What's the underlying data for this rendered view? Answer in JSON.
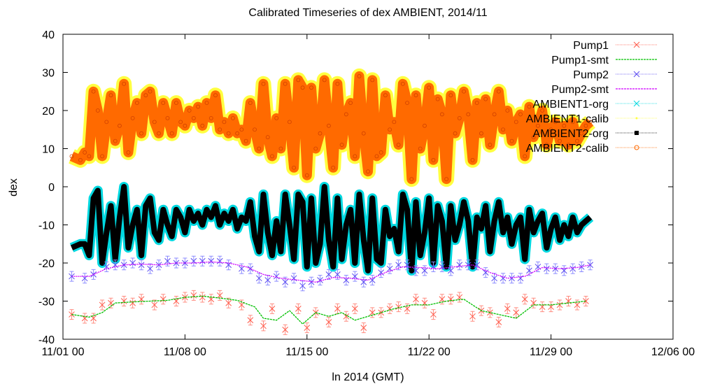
{
  "chart_data": {
    "type": "line",
    "title": "Calibrated Timeseries of dex AMBIENT, 2014/11",
    "xlabel": "ln 2014 (GMT)",
    "ylabel": "dex",
    "xlim": [
      "2014-11-01 00:00",
      "2014-12-06 00:00"
    ],
    "ylim": [
      -40,
      40
    ],
    "x_ticks": [
      "11/01 00",
      "11/08 00",
      "11/15 00",
      "11/22 00",
      "11/29 00",
      "12/06 00"
    ],
    "y_ticks": [
      -40,
      -30,
      -20,
      -10,
      0,
      10,
      20,
      30,
      40
    ],
    "grid": false,
    "legend_position": "top-right",
    "colors": {
      "Pump1": "#ff5a4a",
      "Pump1-smt": "#00c000",
      "Pump2": "#5a4af0",
      "Pump2-smt": "#d000ff",
      "AMBIENT1-org": "#00d8e0",
      "AMBIENT1-calib": "#ffff40",
      "AMBIENT2-org": "#000000",
      "AMBIENT2-calib": "#ff6a00"
    },
    "series": [
      {
        "name": "Pump1",
        "marker": "x",
        "x": [
          "11/01 12",
          "11/02 06",
          "11/02 18",
          "11/03 06",
          "11/03 18",
          "11/04 12",
          "11/05 00",
          "11/05 12",
          "11/06 06",
          "11/06 18",
          "11/07 12",
          "11/08 00",
          "11/08 12",
          "11/09 00",
          "11/09 12",
          "11/10 00",
          "11/10 12",
          "11/11 06",
          "11/11 18",
          "11/12 12",
          "11/13 00",
          "11/13 18",
          "11/14 12",
          "11/15 00",
          "11/15 12",
          "11/16 06",
          "11/16 18",
          "11/17 06",
          "11/17 18",
          "11/18 06",
          "11/18 18",
          "11/19 06",
          "11/19 18",
          "11/20 06",
          "11/20 18",
          "11/21 06",
          "11/21 18",
          "11/22 06",
          "11/22 18",
          "11/23 06",
          "11/23 18",
          "11/24 12",
          "11/25 00",
          "11/25 12",
          "11/26 00",
          "11/26 12",
          "11/27 00",
          "11/27 12",
          "11/28 00",
          "11/28 12",
          "11/29 00",
          "11/29 12",
          "11/30 00",
          "11/30 12",
          "12/01 00"
        ],
        "values": [
          -33.5,
          -34.5,
          -34.5,
          -31,
          -30.5,
          -30,
          -30.5,
          -29.5,
          -31,
          -29.5,
          -30,
          -29,
          -28.5,
          -29,
          -29.5,
          -28.5,
          -30.5,
          -31,
          -35,
          -36.5,
          -32,
          -37.5,
          -32,
          -37,
          -33,
          -35.5,
          -32,
          -34,
          -32,
          -37,
          -33,
          -33,
          -32,
          -31.5,
          -32,
          -29.5,
          -30.5,
          -33.5,
          -29.5,
          -29.5,
          -29,
          -34,
          -32.5,
          -33,
          -35.5,
          -32,
          -33,
          -29.5,
          -30.5,
          -31.5,
          -31.5,
          -31,
          -30,
          -31,
          -30
        ]
      },
      {
        "name": "Pump1-smt",
        "x": [
          "11/01 12",
          "11/02 12",
          "11/03 06",
          "11/04 00",
          "11/05 00",
          "11/06 00",
          "11/07 00",
          "11/08 00",
          "11/09 00",
          "11/10 00",
          "11/11 00",
          "11/12 00",
          "11/12 12",
          "11/13 06",
          "11/14 00",
          "11/14 18",
          "11/15 12",
          "11/16 06",
          "11/17 00",
          "11/17 18",
          "11/18 12",
          "11/19 06",
          "11/20 00",
          "11/21 00",
          "11/22 00",
          "11/23 00",
          "11/24 00",
          "11/25 00",
          "11/26 00",
          "11/27 00",
          "11/28 00",
          "11/29 00",
          "11/30 00",
          "12/01 00"
        ],
        "values": [
          -33.5,
          -34.2,
          -33,
          -30.5,
          -30.2,
          -30,
          -29.8,
          -29,
          -28.7,
          -29.2,
          -29.8,
          -31.5,
          -34.5,
          -35,
          -32.5,
          -36,
          -33,
          -34,
          -33,
          -35,
          -34,
          -33,
          -32,
          -31,
          -31,
          -30,
          -29.5,
          -32.5,
          -33.5,
          -34.5,
          -31,
          -31,
          -30.5,
          -30
        ]
      },
      {
        "name": "Pump2",
        "marker": "x",
        "x": [
          "11/01 12",
          "11/02 06",
          "11/02 18",
          "11/03 12",
          "11/04 00",
          "11/04 12",
          "11/05 00",
          "11/05 12",
          "11/06 00",
          "11/06 12",
          "11/07 00",
          "11/07 12",
          "11/08 00",
          "11/08 12",
          "11/09 00",
          "11/09 12",
          "11/10 00",
          "11/10 12",
          "11/11 06",
          "11/11 18",
          "11/12 06",
          "11/12 18",
          "11/13 06",
          "11/13 18",
          "11/14 06",
          "11/14 18",
          "11/15 06",
          "11/15 18",
          "11/16 06",
          "11/16 18",
          "11/17 06",
          "11/17 18",
          "11/18 06",
          "11/18 18",
          "11/19 06",
          "11/19 18",
          "11/20 06",
          "11/20 18",
          "11/21 06",
          "11/21 18",
          "11/22 06",
          "11/22 18",
          "11/23 06",
          "11/23 18",
          "11/24 06",
          "11/24 18",
          "11/25 06",
          "11/25 18",
          "11/26 06",
          "11/26 18",
          "11/27 06",
          "11/27 18",
          "11/28 06",
          "11/28 18",
          "11/29 06",
          "11/29 18",
          "11/30 06",
          "11/30 18",
          "12/01 06"
        ],
        "values": [
          -23.5,
          -24,
          -23,
          -21,
          -20.5,
          -20.5,
          -20,
          -20.5,
          -21.5,
          -20.5,
          -19.5,
          -20,
          -20,
          -19.5,
          -19.5,
          -19.5,
          -19.5,
          -20.5,
          -21.5,
          -21.5,
          -24,
          -24.5,
          -23.5,
          -25,
          -24,
          -26,
          -25,
          -24.5,
          -23,
          -23,
          -24.5,
          -23.5,
          -25,
          -24.5,
          -22.5,
          -21.5,
          -20.5,
          -20.5,
          -22,
          -22,
          -21,
          -21,
          -22,
          -20.5,
          -20.5,
          -20.5,
          -22.5,
          -24,
          -24,
          -24,
          -24,
          -22,
          -21,
          -21.5,
          -21.5,
          -22,
          -21.5,
          -21,
          -20.5
        ]
      },
      {
        "name": "Pump2-smt",
        "x": [
          "11/01 12",
          "11/02 12",
          "11/03 12",
          "11/04 12",
          "11/05 12",
          "11/06 12",
          "11/07 12",
          "11/08 12",
          "11/09 12",
          "11/10 12",
          "11/11 12",
          "11/12 12",
          "11/13 12",
          "11/14 12",
          "11/15 12",
          "11/16 12",
          "11/17 12",
          "11/18 12",
          "11/19 12",
          "11/20 12",
          "11/21 12",
          "11/22 12",
          "11/23 12",
          "11/24 12",
          "11/25 12",
          "11/26 12",
          "11/27 12",
          "11/28 12",
          "11/29 12",
          "11/30 12",
          "12/01 06"
        ],
        "values": [
          -23.5,
          -23.5,
          -21.5,
          -20.5,
          -20.3,
          -20.5,
          -20,
          -20,
          -19.7,
          -20,
          -21,
          -23,
          -24,
          -24.5,
          -25,
          -23.8,
          -24,
          -24.5,
          -22.5,
          -21,
          -21.2,
          -21.5,
          -21,
          -20.5,
          -22.5,
          -24,
          -23.5,
          -21.2,
          -21.5,
          -21.2,
          -20.5
        ]
      },
      {
        "name": "AMBIENT1-org",
        "marker": "x"
      },
      {
        "name": "AMBIENT1-calib",
        "marker": "dot"
      },
      {
        "name": "AMBIENT2-org",
        "marker": "square",
        "x": [
          "11/01 12",
          "11/02 00",
          "11/02 06",
          "11/02 12",
          "11/02 18",
          "11/03 00",
          "11/03 06",
          "11/03 12",
          "11/03 18",
          "11/04 00",
          "11/04 06",
          "11/04 12",
          "11/04 18",
          "11/05 00",
          "11/05 06",
          "11/05 12",
          "11/05 18",
          "11/06 00",
          "11/06 06",
          "11/06 12",
          "11/06 18",
          "11/07 00",
          "11/07 06",
          "11/07 12",
          "11/07 18",
          "11/08 00",
          "11/08 06",
          "11/08 12",
          "11/08 18",
          "11/09 00",
          "11/09 06",
          "11/09 12",
          "11/09 18",
          "11/10 00",
          "11/10 06",
          "11/10 12",
          "11/10 18",
          "11/11 00",
          "11/11 06",
          "11/11 12",
          "11/11 18",
          "11/12 00",
          "11/12 06",
          "11/12 12",
          "11/12 18",
          "11/13 00",
          "11/13 06",
          "11/13 12",
          "11/13 18",
          "11/14 00",
          "11/14 06",
          "11/14 12",
          "11/14 18",
          "11/15 00",
          "11/15 06",
          "11/15 12",
          "11/15 18",
          "11/16 00",
          "11/16 06",
          "11/16 12",
          "11/16 18",
          "11/17 00",
          "11/17 06",
          "11/17 12",
          "11/17 18",
          "11/18 00",
          "11/18 06",
          "11/18 12",
          "11/18 18",
          "11/19 00",
          "11/19 06",
          "11/19 12",
          "11/19 18",
          "11/20 00",
          "11/20 06",
          "11/20 12",
          "11/20 18",
          "11/21 00",
          "11/21 06",
          "11/21 12",
          "11/21 18",
          "11/22 00",
          "11/22 06",
          "11/22 12",
          "11/22 18",
          "11/23 00",
          "11/23 06",
          "11/23 12",
          "11/23 18",
          "11/24 00",
          "11/24 06",
          "11/24 12",
          "11/24 18",
          "11/25 00",
          "11/25 06",
          "11/25 12",
          "11/25 18",
          "11/26 00",
          "11/26 06",
          "11/26 12",
          "11/26 18",
          "11/27 00",
          "11/27 06",
          "11/27 12",
          "11/27 18",
          "11/28 00",
          "11/28 06",
          "11/28 12",
          "11/28 18",
          "11/29 00",
          "11/29 06",
          "11/29 12",
          "11/29 18",
          "11/30 00",
          "11/30 06",
          "11/30 12",
          "11/30 18",
          "12/01 00",
          "12/01 06"
        ],
        "values": [
          -16,
          -15,
          -15,
          -18,
          -3,
          -1,
          -20,
          -12,
          -5,
          -19,
          -8,
          0,
          -16,
          -10,
          -6,
          -18,
          -5,
          -3,
          -12,
          -14,
          -6,
          -10,
          -13,
          -6,
          -8,
          -12,
          -6,
          -9,
          -7,
          -10,
          -6,
          -8,
          -5,
          -10,
          -7,
          -9,
          -6,
          -11,
          -8,
          -9,
          -4,
          -13,
          -17,
          -2,
          -12,
          -18,
          -9,
          -17,
          -2,
          -10,
          -19,
          -2,
          -4,
          -21,
          -3,
          -20,
          -15,
          0,
          -14,
          -21,
          -3,
          -19,
          -10,
          -6,
          -20,
          -2,
          -14,
          -22,
          -3,
          -19,
          -20,
          -6,
          -13,
          -11,
          -17,
          -2,
          -6,
          -22,
          -4,
          -18,
          -12,
          -3,
          -20,
          -5,
          -9,
          -21,
          -5,
          -14,
          -10,
          -4,
          -9,
          -21,
          -8,
          -11,
          -5,
          -17,
          -9,
          -4,
          -12,
          -8,
          -15,
          -10,
          -8,
          -19,
          -6,
          -12,
          -9,
          -7,
          -16,
          -11,
          -8,
          -14,
          -10,
          -13,
          -8,
          -12,
          -10,
          -9,
          -8
        ]
      },
      {
        "name": "AMBIENT2-calib",
        "marker": "circle",
        "x": [
          "11/01 12",
          "11/02 00",
          "11/02 06",
          "11/02 12",
          "11/02 18",
          "11/03 00",
          "11/03 06",
          "11/03 12",
          "11/03 18",
          "11/04 00",
          "11/04 06",
          "11/04 12",
          "11/04 18",
          "11/05 00",
          "11/05 06",
          "11/05 12",
          "11/05 18",
          "11/06 00",
          "11/06 06",
          "11/06 12",
          "11/06 18",
          "11/07 00",
          "11/07 06",
          "11/07 12",
          "11/07 18",
          "11/08 00",
          "11/08 06",
          "11/08 12",
          "11/08 18",
          "11/09 00",
          "11/09 06",
          "11/09 12",
          "11/09 18",
          "11/10 00",
          "11/10 06",
          "11/10 12",
          "11/10 18",
          "11/11 00",
          "11/11 06",
          "11/11 12",
          "11/11 18",
          "11/12 00",
          "11/12 06",
          "11/12 12",
          "11/12 18",
          "11/13 00",
          "11/13 06",
          "11/13 12",
          "11/13 18",
          "11/14 00",
          "11/14 06",
          "11/14 12",
          "11/14 18",
          "11/15 00",
          "11/15 06",
          "11/15 12",
          "11/15 18",
          "11/16 00",
          "11/16 06",
          "11/16 12",
          "11/16 18",
          "11/17 00",
          "11/17 06",
          "11/17 12",
          "11/17 18",
          "11/18 00",
          "11/18 06",
          "11/18 12",
          "11/18 18",
          "11/19 00",
          "11/19 06",
          "11/19 12",
          "11/19 18",
          "11/20 00",
          "11/20 06",
          "11/20 12",
          "11/20 18",
          "11/21 00",
          "11/21 06",
          "11/21 12",
          "11/21 18",
          "11/22 00",
          "11/22 06",
          "11/22 12",
          "11/22 18",
          "11/23 00",
          "11/23 06",
          "11/23 12",
          "11/23 18",
          "11/24 00",
          "11/24 06",
          "11/24 12",
          "11/24 18",
          "11/25 00",
          "11/25 06",
          "11/25 12",
          "11/25 18",
          "11/26 00",
          "11/26 06",
          "11/26 12",
          "11/26 18",
          "11/27 00",
          "11/27 06",
          "11/27 12",
          "11/27 18",
          "11/28 00",
          "11/28 06",
          "11/28 12",
          "11/28 18",
          "11/29 00",
          "11/29 06",
          "11/29 12",
          "11/29 18",
          "11/30 00",
          "11/30 06",
          "11/30 12",
          "11/30 18",
          "12/01 00",
          "12/01 06"
        ],
        "values": [
          8,
          7,
          9,
          8,
          25,
          20,
          8,
          17,
          24,
          12,
          16,
          27,
          9,
          18,
          22,
          14,
          24,
          25,
          17,
          14,
          22,
          18,
          14,
          22,
          17,
          16,
          20,
          18,
          21,
          16,
          22,
          18,
          24,
          15,
          17,
          14,
          18,
          14,
          15,
          12,
          22,
          15,
          10,
          27,
          13,
          8,
          18,
          10,
          27,
          17,
          5,
          28,
          26,
          3,
          26,
          10,
          14,
          28,
          16,
          5,
          27,
          11,
          19,
          22,
          8,
          29,
          14,
          4,
          28,
          8,
          9,
          24,
          15,
          17,
          11,
          27,
          22,
          2,
          24,
          10,
          16,
          26,
          7,
          23,
          19,
          2,
          24,
          14,
          18,
          25,
          19,
          7,
          22,
          14,
          23,
          11,
          19,
          25,
          15,
          20,
          12,
          17,
          19,
          8,
          21,
          13,
          16,
          20,
          11,
          15,
          17,
          12,
          16,
          11,
          17,
          12,
          14,
          16,
          17
        ]
      }
    ]
  }
}
